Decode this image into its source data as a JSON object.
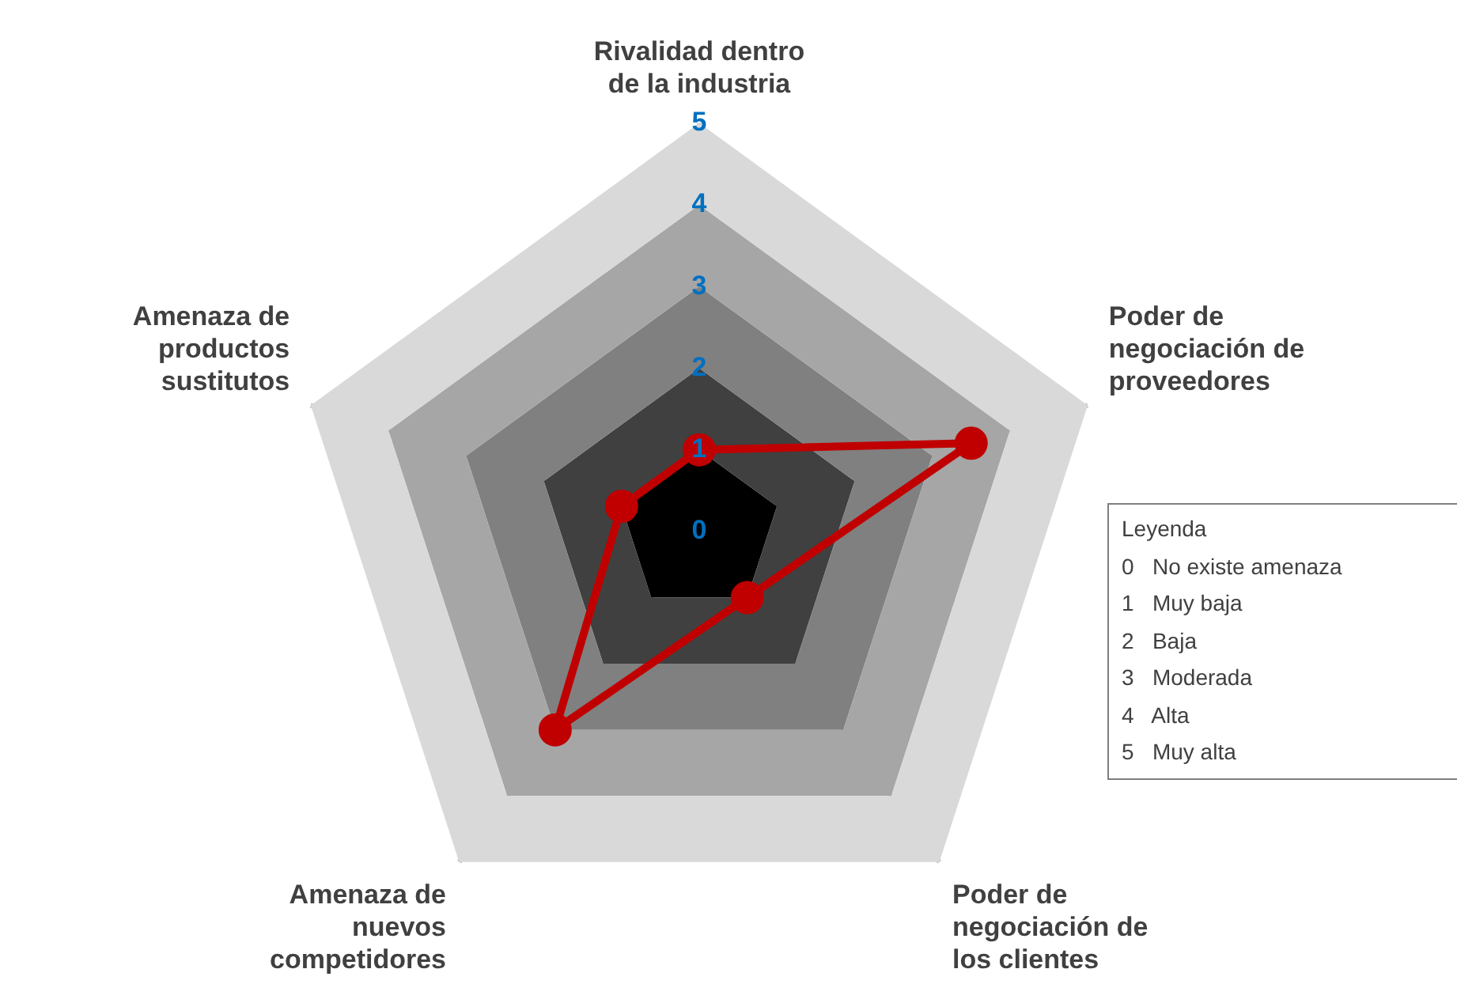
{
  "chart_data": {
    "type": "radar",
    "categories": [
      "Rivalidad dentro de la industria",
      "Poder de negociación de proveedores",
      "Poder de negociación de los clientes",
      "Amenaza de nuevos competidores",
      "Amenaza de productos sustitutos"
    ],
    "series": [
      {
        "color": "#c00000",
        "values": [
          1,
          3.5,
          1,
          3,
          1
        ]
      }
    ],
    "ylim": [
      0,
      5
    ],
    "yticks": [
      0,
      1,
      2,
      3,
      4,
      5
    ],
    "marker": "circle",
    "grid": true,
    "annotations": [
      "Leyenda",
      "0   No existe amenaza",
      "1   Muy baja",
      "2   Baja",
      "3   Moderada",
      "4   Alta",
      "5   Muy alta"
    ]
  }
}
